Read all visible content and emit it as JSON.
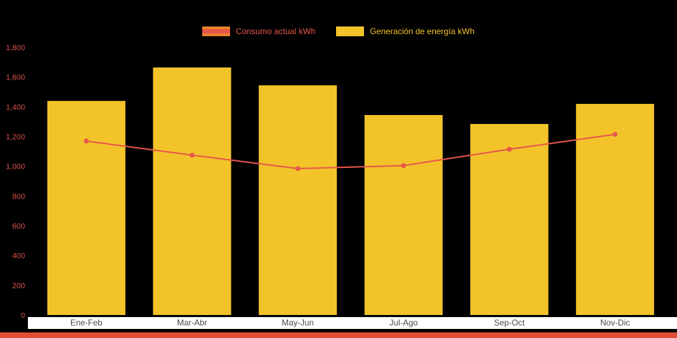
{
  "canvas": {
    "bg": "#000000"
  },
  "legend": {
    "items": [
      {
        "label": "Consumo actual kWh",
        "text_color": "#E8564C",
        "swatch_color": "#E8812B",
        "marker": "line"
      },
      {
        "label": "Generación de energía kWh",
        "text_color": "#F2C42A",
        "swatch_color": "#F2C42A",
        "marker": "bar"
      }
    ]
  },
  "chart_data": {
    "type": "bar",
    "subtype": "bar+line combo",
    "categories": [
      "Ene-Feb",
      "Mar-Abr",
      "May-Jun",
      "Jul-Ago",
      "Sep-Oct",
      "Nov-Dic"
    ],
    "series": [
      {
        "name": "Generación de energía kWh",
        "type": "bar",
        "color": "#F2C42A",
        "values": [
          1440,
          1665,
          1545,
          1345,
          1285,
          1420
        ]
      },
      {
        "name": "Consumo actual kWh",
        "type": "line",
        "color": "#E8564C",
        "values": [
          1170,
          1075,
          985,
          1005,
          1115,
          1215
        ]
      }
    ],
    "title": "",
    "xlabel": "",
    "ylabel": "",
    "ylim": [
      0,
      1800
    ],
    "ytick_interval": 200,
    "yticks": [
      "1,800",
      "1,600",
      "1,400",
      "1,200",
      "1,000",
      "800",
      "600",
      "400",
      "200",
      "0"
    ],
    "grid": false,
    "legend_position": "top-center"
  },
  "axis": {
    "ytick_color": "#D95348",
    "xtick_color": "#4A4A4A",
    "xstrip_bg": "#FFFFFF"
  },
  "footer_bar": {
    "color": "#E04F33"
  }
}
